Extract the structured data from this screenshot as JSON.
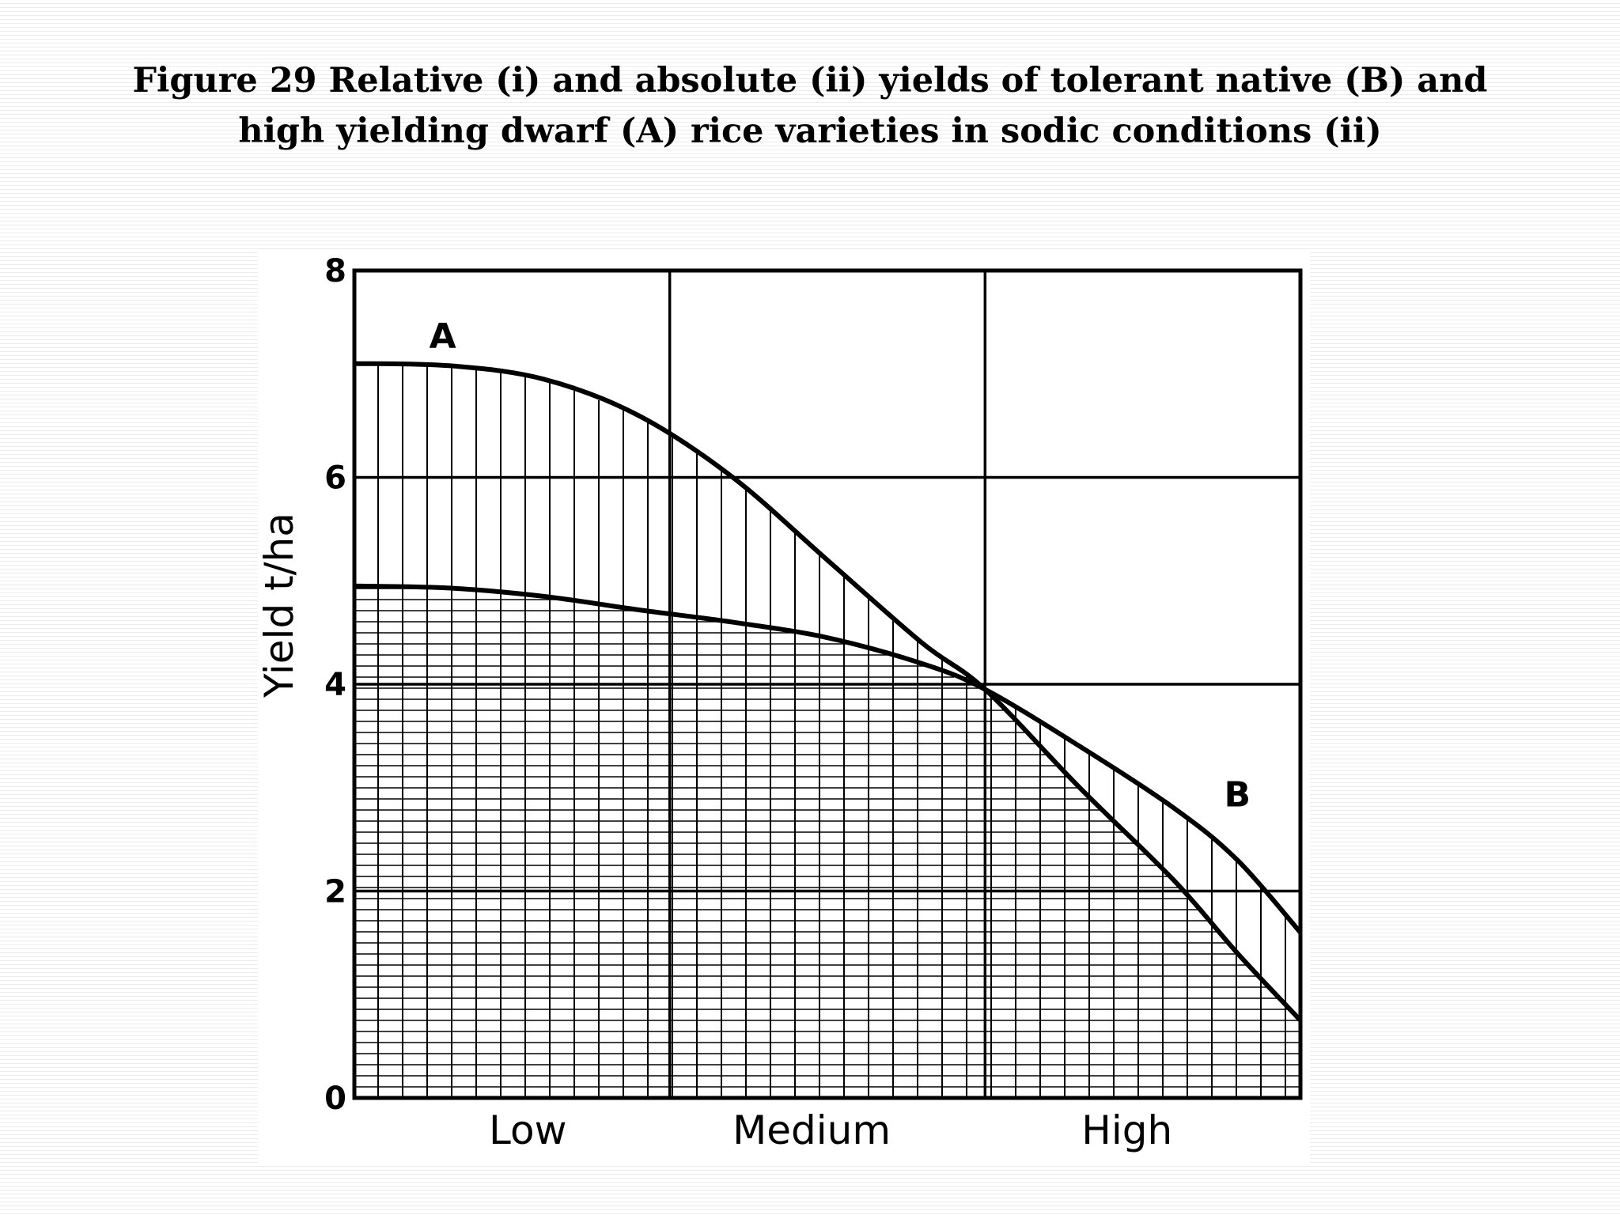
{
  "title": {
    "line1": "Figure 29 Relative (i) and absolute (ii) yields of tolerant native (B) and",
    "line2": "high yielding dwarf (A) rice varieties in sodic conditions (ii)"
  },
  "chart_data": {
    "type": "line",
    "ylabel": "Yield t/ha",
    "xlabel": "",
    "ylim": [
      0,
      8
    ],
    "xlim": [
      0,
      3
    ],
    "y_ticks": [
      0,
      2,
      4,
      6,
      8
    ],
    "y_tick_labels": [
      "0",
      "2",
      "4",
      "6",
      "8"
    ],
    "x_tick_labels": [
      {
        "label": "Low",
        "x": 0.55
      },
      {
        "label": "Medium",
        "x": 1.45
      },
      {
        "label": "High",
        "x": 2.45
      }
    ],
    "x_gridlines": [
      1,
      2
    ],
    "grid": true,
    "series": [
      {
        "name": "A",
        "color": "#000000",
        "points": [
          [
            0,
            7.1
          ],
          [
            0.3,
            7.08
          ],
          [
            0.6,
            6.95
          ],
          [
            0.9,
            6.6
          ],
          [
            1.2,
            6.0
          ],
          [
            1.5,
            5.2
          ],
          [
            1.8,
            4.4
          ],
          [
            2.0,
            3.95
          ],
          [
            2.3,
            3.0
          ],
          [
            2.6,
            2.1
          ],
          [
            2.8,
            1.4
          ],
          [
            3.0,
            0.75
          ]
        ],
        "label_at": [
          0.28,
          7.25
        ]
      },
      {
        "name": "B",
        "color": "#000000",
        "points": [
          [
            0,
            4.95
          ],
          [
            0.3,
            4.93
          ],
          [
            0.6,
            4.85
          ],
          [
            0.9,
            4.72
          ],
          [
            1.2,
            4.6
          ],
          [
            1.5,
            4.45
          ],
          [
            1.8,
            4.2
          ],
          [
            2.0,
            3.95
          ],
          [
            2.3,
            3.4
          ],
          [
            2.6,
            2.8
          ],
          [
            2.8,
            2.3
          ],
          [
            3.0,
            1.6
          ]
        ],
        "label_at": [
          2.8,
          2.82
        ]
      }
    ],
    "hatching": {
      "between_A_and_B": "vertical lines",
      "below_B": "horizontal lines"
    }
  }
}
